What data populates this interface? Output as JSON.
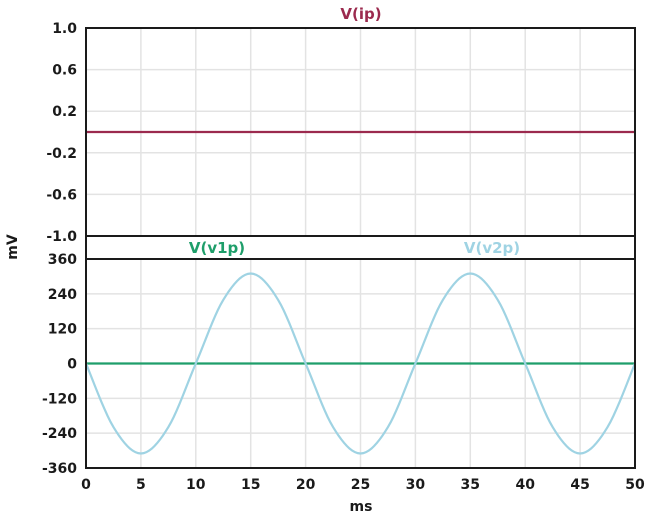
{
  "chart_data": [
    {
      "type": "line",
      "title": "",
      "xlabel": "ms",
      "ylabel": "mV",
      "xlim": [
        0,
        50
      ],
      "ylim": [
        -1.0,
        1.0
      ],
      "yticks": [
        1.0,
        0.6,
        0.2,
        -0.2,
        -0.6,
        -1.0
      ],
      "ytick_labels": [
        "1.0",
        "0.6",
        "0.2",
        "-0.2",
        "-0.6",
        "-1.0"
      ],
      "grid": true,
      "series": [
        {
          "name": "V(ip)",
          "color": "#9b2a4e",
          "x": [
            0,
            50
          ],
          "y": [
            0,
            0
          ]
        }
      ]
    },
    {
      "type": "line",
      "title": "",
      "xlabel": "ms",
      "ylabel": "mV",
      "xlim": [
        0,
        50
      ],
      "ylim": [
        -360,
        360
      ],
      "yticks": [
        360,
        240,
        120,
        0,
        -120,
        -240,
        -360
      ],
      "ytick_labels": [
        "360",
        "240",
        "120",
        "0",
        "-120",
        "-240",
        "-360"
      ],
      "xticks": [
        0,
        5,
        10,
        15,
        20,
        25,
        30,
        35,
        40,
        45,
        50
      ],
      "xtick_labels": [
        "0",
        "5",
        "10",
        "15",
        "20",
        "25",
        "30",
        "35",
        "40",
        "45",
        "50"
      ],
      "grid": true,
      "series": [
        {
          "name": "V(v1p)",
          "color": "#1e9e6a",
          "x": [
            0,
            50
          ],
          "y": [
            0,
            0
          ]
        },
        {
          "name": "V(v2p)",
          "color": "#9fd3e3",
          "x": [
            0,
            2.5,
            5,
            7.5,
            10,
            12.5,
            15,
            17.5,
            20,
            22.5,
            25,
            27.5,
            30,
            32.5,
            35,
            37.5,
            40,
            42.5,
            45,
            47.5,
            50
          ],
          "y": [
            0,
            -219,
            -310,
            -219,
            0,
            219,
            310,
            219,
            0,
            -219,
            -310,
            -219,
            0,
            219,
            310,
            219,
            0,
            -219,
            -310,
            -219,
            0
          ]
        }
      ]
    }
  ]
}
